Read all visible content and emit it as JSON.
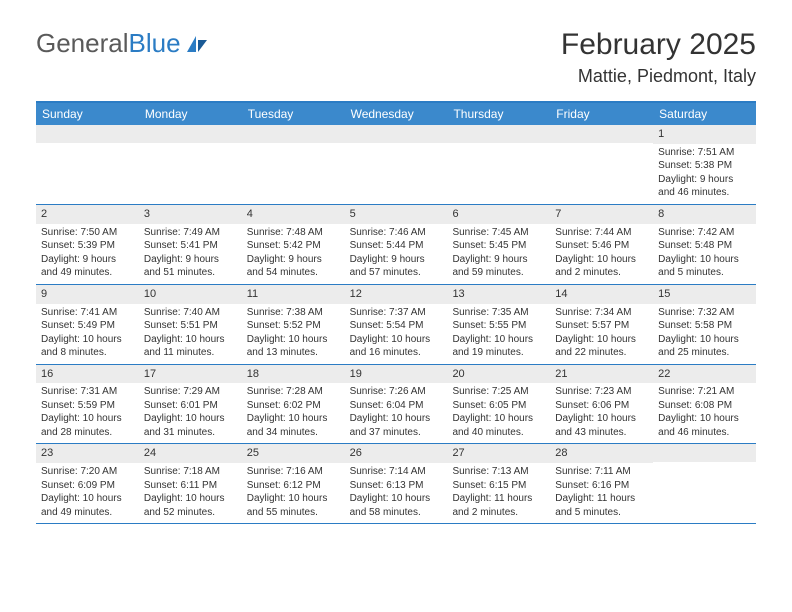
{
  "logo": {
    "text1": "General",
    "text2": "Blue"
  },
  "title": "February 2025",
  "location": "Mattie, Piedmont, Italy",
  "day_headers": [
    "Sunday",
    "Monday",
    "Tuesday",
    "Wednesday",
    "Thursday",
    "Friday",
    "Saturday"
  ],
  "colors": {
    "header_bg": "#3b89cc",
    "header_text": "#ffffff",
    "border": "#2b7cc4",
    "daynum_bg": "#ececec",
    "text": "#333333",
    "logo_gray": "#5a5a5a",
    "logo_blue": "#2b7cc4"
  },
  "weeks": [
    [
      {
        "n": "",
        "sr": "",
        "ss": "",
        "dl": ""
      },
      {
        "n": "",
        "sr": "",
        "ss": "",
        "dl": ""
      },
      {
        "n": "",
        "sr": "",
        "ss": "",
        "dl": ""
      },
      {
        "n": "",
        "sr": "",
        "ss": "",
        "dl": ""
      },
      {
        "n": "",
        "sr": "",
        "ss": "",
        "dl": ""
      },
      {
        "n": "",
        "sr": "",
        "ss": "",
        "dl": ""
      },
      {
        "n": "1",
        "sr": "Sunrise: 7:51 AM",
        "ss": "Sunset: 5:38 PM",
        "dl": "Daylight: 9 hours and 46 minutes."
      }
    ],
    [
      {
        "n": "2",
        "sr": "Sunrise: 7:50 AM",
        "ss": "Sunset: 5:39 PM",
        "dl": "Daylight: 9 hours and 49 minutes."
      },
      {
        "n": "3",
        "sr": "Sunrise: 7:49 AM",
        "ss": "Sunset: 5:41 PM",
        "dl": "Daylight: 9 hours and 51 minutes."
      },
      {
        "n": "4",
        "sr": "Sunrise: 7:48 AM",
        "ss": "Sunset: 5:42 PM",
        "dl": "Daylight: 9 hours and 54 minutes."
      },
      {
        "n": "5",
        "sr": "Sunrise: 7:46 AM",
        "ss": "Sunset: 5:44 PM",
        "dl": "Daylight: 9 hours and 57 minutes."
      },
      {
        "n": "6",
        "sr": "Sunrise: 7:45 AM",
        "ss": "Sunset: 5:45 PM",
        "dl": "Daylight: 9 hours and 59 minutes."
      },
      {
        "n": "7",
        "sr": "Sunrise: 7:44 AM",
        "ss": "Sunset: 5:46 PM",
        "dl": "Daylight: 10 hours and 2 minutes."
      },
      {
        "n": "8",
        "sr": "Sunrise: 7:42 AM",
        "ss": "Sunset: 5:48 PM",
        "dl": "Daylight: 10 hours and 5 minutes."
      }
    ],
    [
      {
        "n": "9",
        "sr": "Sunrise: 7:41 AM",
        "ss": "Sunset: 5:49 PM",
        "dl": "Daylight: 10 hours and 8 minutes."
      },
      {
        "n": "10",
        "sr": "Sunrise: 7:40 AM",
        "ss": "Sunset: 5:51 PM",
        "dl": "Daylight: 10 hours and 11 minutes."
      },
      {
        "n": "11",
        "sr": "Sunrise: 7:38 AM",
        "ss": "Sunset: 5:52 PM",
        "dl": "Daylight: 10 hours and 13 minutes."
      },
      {
        "n": "12",
        "sr": "Sunrise: 7:37 AM",
        "ss": "Sunset: 5:54 PM",
        "dl": "Daylight: 10 hours and 16 minutes."
      },
      {
        "n": "13",
        "sr": "Sunrise: 7:35 AM",
        "ss": "Sunset: 5:55 PM",
        "dl": "Daylight: 10 hours and 19 minutes."
      },
      {
        "n": "14",
        "sr": "Sunrise: 7:34 AM",
        "ss": "Sunset: 5:57 PM",
        "dl": "Daylight: 10 hours and 22 minutes."
      },
      {
        "n": "15",
        "sr": "Sunrise: 7:32 AM",
        "ss": "Sunset: 5:58 PM",
        "dl": "Daylight: 10 hours and 25 minutes."
      }
    ],
    [
      {
        "n": "16",
        "sr": "Sunrise: 7:31 AM",
        "ss": "Sunset: 5:59 PM",
        "dl": "Daylight: 10 hours and 28 minutes."
      },
      {
        "n": "17",
        "sr": "Sunrise: 7:29 AM",
        "ss": "Sunset: 6:01 PM",
        "dl": "Daylight: 10 hours and 31 minutes."
      },
      {
        "n": "18",
        "sr": "Sunrise: 7:28 AM",
        "ss": "Sunset: 6:02 PM",
        "dl": "Daylight: 10 hours and 34 minutes."
      },
      {
        "n": "19",
        "sr": "Sunrise: 7:26 AM",
        "ss": "Sunset: 6:04 PM",
        "dl": "Daylight: 10 hours and 37 minutes."
      },
      {
        "n": "20",
        "sr": "Sunrise: 7:25 AM",
        "ss": "Sunset: 6:05 PM",
        "dl": "Daylight: 10 hours and 40 minutes."
      },
      {
        "n": "21",
        "sr": "Sunrise: 7:23 AM",
        "ss": "Sunset: 6:06 PM",
        "dl": "Daylight: 10 hours and 43 minutes."
      },
      {
        "n": "22",
        "sr": "Sunrise: 7:21 AM",
        "ss": "Sunset: 6:08 PM",
        "dl": "Daylight: 10 hours and 46 minutes."
      }
    ],
    [
      {
        "n": "23",
        "sr": "Sunrise: 7:20 AM",
        "ss": "Sunset: 6:09 PM",
        "dl": "Daylight: 10 hours and 49 minutes."
      },
      {
        "n": "24",
        "sr": "Sunrise: 7:18 AM",
        "ss": "Sunset: 6:11 PM",
        "dl": "Daylight: 10 hours and 52 minutes."
      },
      {
        "n": "25",
        "sr": "Sunrise: 7:16 AM",
        "ss": "Sunset: 6:12 PM",
        "dl": "Daylight: 10 hours and 55 minutes."
      },
      {
        "n": "26",
        "sr": "Sunrise: 7:14 AM",
        "ss": "Sunset: 6:13 PM",
        "dl": "Daylight: 10 hours and 58 minutes."
      },
      {
        "n": "27",
        "sr": "Sunrise: 7:13 AM",
        "ss": "Sunset: 6:15 PM",
        "dl": "Daylight: 11 hours and 2 minutes."
      },
      {
        "n": "28",
        "sr": "Sunrise: 7:11 AM",
        "ss": "Sunset: 6:16 PM",
        "dl": "Daylight: 11 hours and 5 minutes."
      },
      {
        "n": "",
        "sr": "",
        "ss": "",
        "dl": ""
      }
    ]
  ]
}
